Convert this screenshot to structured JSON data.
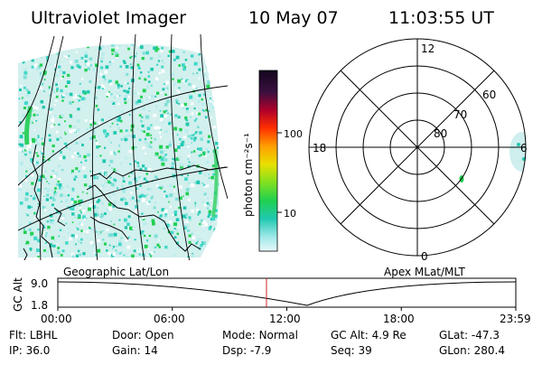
{
  "header": {
    "title": "Ultraviolet Imager",
    "date": "10 May 07",
    "time": "11:03:55 UT"
  },
  "panels": {
    "left_label": "Geographic Lat/Lon",
    "right_label": "Apex MLat/MLT"
  },
  "colorbar": {
    "unit_label": "photon cm⁻²s⁻¹",
    "ticks": [
      "100",
      "10"
    ],
    "colors": [
      "#1a0a2a",
      "#b00030",
      "#ff2000",
      "#ff8800",
      "#ffd000",
      "#a8e000",
      "#20d040",
      "#20d0c0",
      "#c8f0f0"
    ]
  },
  "polar": {
    "mlt_labels": {
      "top": "12",
      "bottom": "0",
      "left": "18",
      "right": "6"
    },
    "ring_labels": [
      "80",
      "70",
      "60"
    ]
  },
  "altitude_strip": {
    "axis_title": "GC Alt",
    "y_ticks": [
      "9.0",
      "1.8"
    ],
    "x_ticks": [
      "00:00",
      "06:00",
      "12:00",
      "18:00",
      "23:59"
    ],
    "current_time_color": "#d02020"
  },
  "footer": {
    "row1": [
      {
        "label": "Flt:",
        "value": "LBHL"
      },
      {
        "label": "Door:",
        "value": "Open"
      },
      {
        "label": "Mode:",
        "value": "Normal"
      },
      {
        "label": "GC Alt:",
        "value": "4.9 Re"
      },
      {
        "label": "GLat:",
        "value": "-47.3"
      }
    ],
    "row2": [
      {
        "label": "IP:",
        "value": "36.0"
      },
      {
        "label": "Gain:",
        "value": "14"
      },
      {
        "label": "Dsp:",
        "value": "-7.9"
      },
      {
        "label": "Seq:",
        "value": "39"
      },
      {
        "label": "GLon:",
        "value": "280.4"
      }
    ]
  }
}
